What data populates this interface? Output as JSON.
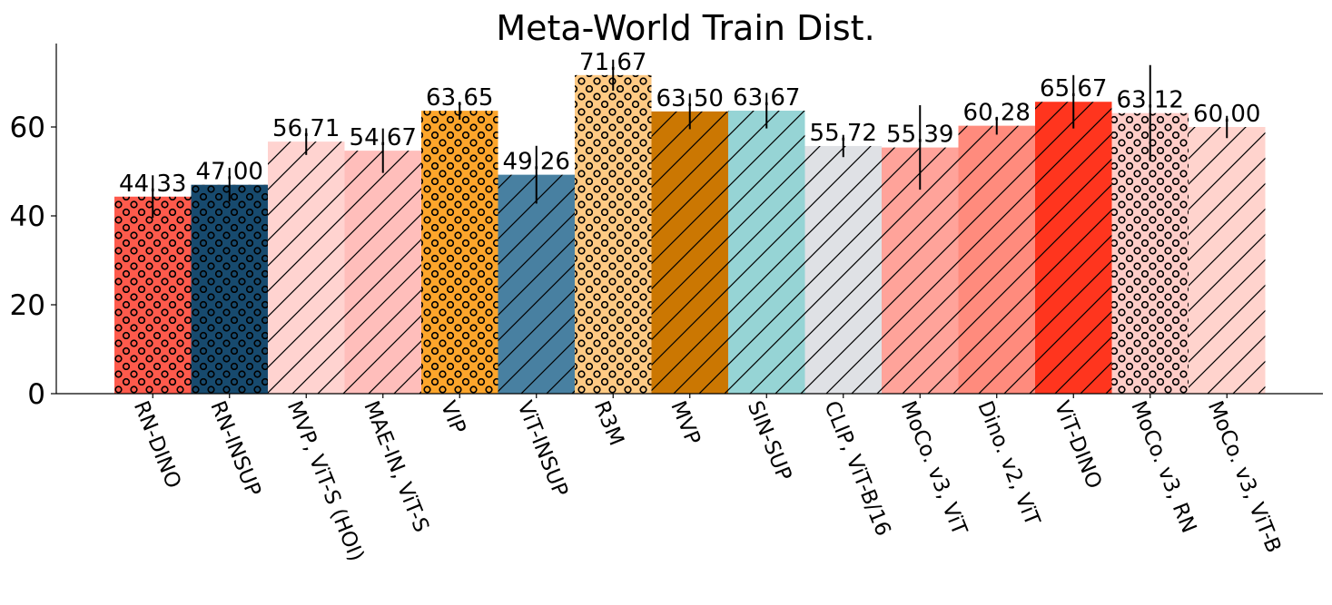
{
  "chart_data": {
    "type": "bar",
    "title": "Meta-World Train Dist.",
    "xlabel": "",
    "ylabel": "",
    "ylim": [
      0,
      80
    ],
    "yticks": [
      0,
      20,
      40,
      60
    ],
    "grid": false,
    "categories": [
      "RN-DINO",
      "RN-INSUP",
      "MVP, ViT-S (HOI)",
      "MAE-IN, ViT-S",
      "VIP",
      "ViT-INSUP",
      "R3M",
      "MVP",
      "SIN-SUP",
      "CLIP, ViT-B/16",
      "MoCo. v3, ViT",
      "Dino. v2, ViT",
      "ViT-DINO",
      "MoCo. v3, RN",
      "MoCo. v3, ViT-B"
    ],
    "values": [
      44.33,
      47.0,
      56.71,
      54.67,
      63.65,
      49.26,
      71.67,
      63.5,
      63.67,
      55.72,
      55.39,
      60.28,
      65.67,
      63.12,
      60.0
    ],
    "value_labels": [
      "44.33",
      "47.00",
      "56.71",
      "54.67",
      "63.65",
      "49.26",
      "71.67",
      "63.50",
      "63.67",
      "55.72",
      "55.39",
      "60.28",
      "65.67",
      "63.12",
      "60.00"
    ],
    "errors": [
      4.8,
      3.8,
      3.0,
      5.0,
      2.0,
      6.5,
      3.5,
      4.0,
      4.0,
      2.5,
      9.5,
      2.0,
      6.0,
      10.8,
      2.5
    ],
    "colors": [
      "#fe5a4c",
      "#174a6e",
      "#ffd3d0",
      "#ffbebb",
      "#fda52b",
      "#4880a1",
      "#ffca84",
      "#cb7702",
      "#96d4d5",
      "#dfe1e5",
      "#ffa39a",
      "#ff8b7d",
      "#ff351e",
      "#ffcdc8",
      "#ffd3cd"
    ],
    "patterns": [
      "circles",
      "circles",
      "diagonal",
      "diagonal",
      "circles",
      "diagonal",
      "circles",
      "diagonal",
      "diagonal",
      "diagonal",
      "diagonal",
      "diagonal",
      "diagonal",
      "circles",
      "diagonal"
    ]
  }
}
